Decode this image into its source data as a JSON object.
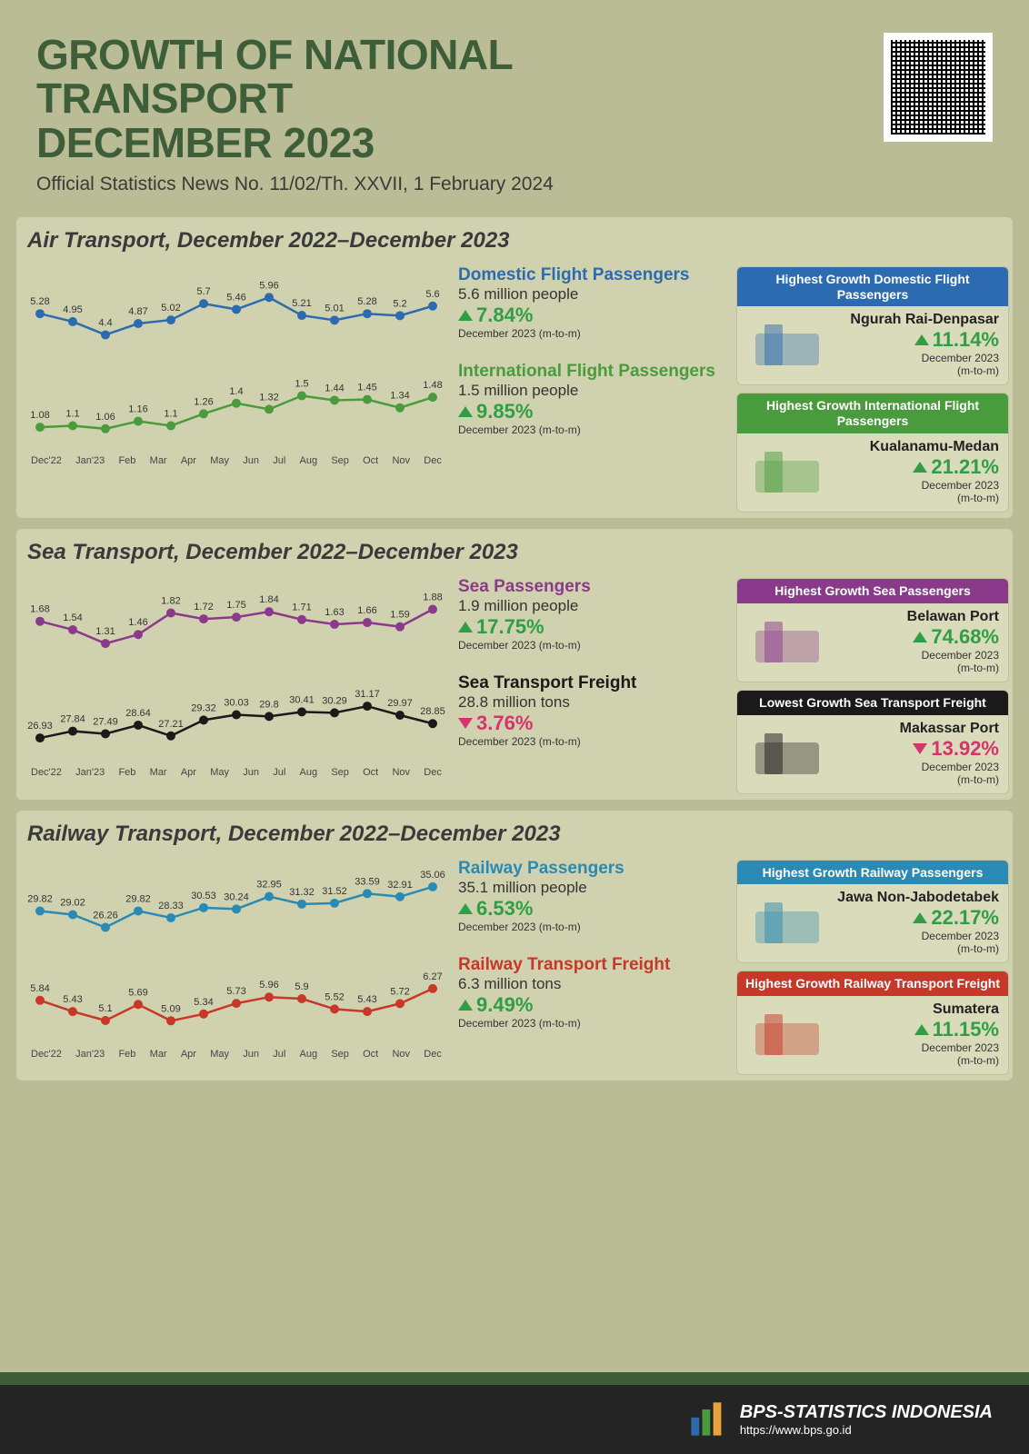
{
  "header": {
    "title_l1": "GROWTH OF NATIONAL",
    "title_l2": "TRANSPORT",
    "title_l3": "DECEMBER 2023",
    "subtitle": "Official Statistics News No. 11/02/Th. XXVII, 1 February 2024"
  },
  "x_labels": [
    "Dec'22",
    "Jan'23",
    "Feb",
    "Mar",
    "Apr",
    "May",
    "Jun",
    "Jul",
    "Aug",
    "Sep",
    "Oct",
    "Nov",
    "Dec"
  ],
  "colors": {
    "domestic": "#2d6bb0",
    "international": "#4a9b3e",
    "sea_pass": "#8b3a8b",
    "sea_freight": "#1a1a1a",
    "rail_pass": "#2b8ab3",
    "rail_freight": "#c73828",
    "up": "#2f9e44",
    "down": "#d6336c"
  },
  "sections": [
    {
      "title": "Air Transport, December 2022–December 2023",
      "series": [
        {
          "key": "domestic",
          "values": [
            5.28,
            4.95,
            4.4,
            4.87,
            5.02,
            5.7,
            5.46,
            5.96,
            5.21,
            5.01,
            5.28,
            5.2,
            5.6
          ],
          "color": "#2d6bb0",
          "yrange": [
            4.0,
            6.5
          ],
          "sum_title": "Domestic Flight Passengers",
          "sum_value": "5.6 million people",
          "sum_pct": "7.84%",
          "direction": "up",
          "pct_color": "#2f9e44",
          "sum_note": "December 2023 (m-to-m)"
        },
        {
          "key": "international",
          "values": [
            1.08,
            1.1,
            1.06,
            1.16,
            1.1,
            1.26,
            1.4,
            1.32,
            1.5,
            1.44,
            1.45,
            1.34,
            1.48
          ],
          "color": "#4a9b3e",
          "yrange": [
            0.9,
            1.7
          ],
          "sum_title": "International Flight Passengers",
          "sum_value": "1.5 million people",
          "sum_pct": "9.85%",
          "direction": "up",
          "pct_color": "#2f9e44",
          "sum_note": "December 2023 (m-to-m)"
        }
      ],
      "side": [
        {
          "hdr": "Highest Growth Domestic Flight Passengers",
          "hdr_bg": "#2d6bb0",
          "label": "Ngurah Rai-Denpasar",
          "pct": "11.14%",
          "direction": "up",
          "pct_color": "#2f9e44",
          "note": "December 2023",
          "note2": "(m-to-m)"
        },
        {
          "hdr": "Highest Growth International Flight Passengers",
          "hdr_bg": "#4a9b3e",
          "label": "Kualanamu-Medan",
          "pct": "21.21%",
          "direction": "up",
          "pct_color": "#2f9e44",
          "note": "December 2023",
          "note2": "(m-to-m)"
        }
      ]
    },
    {
      "title": "Sea Transport, December 2022–December 2023",
      "series": [
        {
          "key": "sea_pass",
          "values": [
            1.68,
            1.54,
            1.31,
            1.46,
            1.82,
            1.72,
            1.75,
            1.84,
            1.71,
            1.63,
            1.66,
            1.59,
            1.88
          ],
          "color": "#8b3a8b",
          "yrange": [
            1.1,
            2.1
          ],
          "sum_title": "Sea Passengers",
          "sum_value": "1.9 million people",
          "sum_pct": "17.75%",
          "direction": "up",
          "pct_color": "#2f9e44",
          "sum_note": "December 2023 (m-to-m)"
        },
        {
          "key": "sea_freight",
          "values": [
            26.93,
            27.84,
            27.49,
            28.64,
            27.21,
            29.32,
            30.03,
            29.8,
            30.41,
            30.29,
            31.17,
            29.97,
            28.85
          ],
          "color": "#1a1a1a",
          "yrange": [
            25,
            33
          ],
          "sum_title": "Sea Transport Freight",
          "sum_value": "28.8 million tons",
          "sum_pct": "3.76%",
          "direction": "down",
          "pct_color": "#d6336c",
          "sum_note": "December 2023 (m-to-m)"
        }
      ],
      "side": [
        {
          "hdr": "Highest Growth Sea Passengers",
          "hdr_bg": "#8b3a8b",
          "label": "Belawan Port",
          "pct": "74.68%",
          "direction": "up",
          "pct_color": "#2f9e44",
          "note": "December 2023",
          "note2": "(m-to-m)"
        },
        {
          "hdr": "Lowest Growth Sea Transport Freight",
          "hdr_bg": "#1a1a1a",
          "label": "Makassar Port",
          "pct": "13.92%",
          "direction": "down",
          "pct_color": "#d6336c",
          "note": "December 2023",
          "note2": "(m-to-m)"
        }
      ]
    },
    {
      "title": "Railway Transport, December 2022–December 2023",
      "series": [
        {
          "key": "rail_pass",
          "values": [
            29.82,
            29.02,
            26.26,
            29.82,
            28.33,
            30.53,
            30.24,
            32.95,
            31.32,
            31.52,
            33.59,
            32.91,
            35.06
          ],
          "color": "#2b8ab3",
          "yrange": [
            24,
            37
          ],
          "sum_title": "Railway Passengers",
          "sum_value": "35.1 million people",
          "sum_pct": "6.53%",
          "direction": "up",
          "pct_color": "#2f9e44",
          "sum_note": "December 2023 (m-to-m)"
        },
        {
          "key": "rail_freight",
          "values": [
            5.84,
            5.43,
            5.1,
            5.69,
            5.09,
            5.34,
            5.73,
            5.96,
            5.9,
            5.52,
            5.43,
            5.72,
            6.27
          ],
          "color": "#c73828",
          "yrange": [
            4.6,
            6.8
          ],
          "sum_title": "Railway Transport Freight",
          "sum_value": "6.3 million tons",
          "sum_pct": "9.49%",
          "direction": "up",
          "pct_color": "#2f9e44",
          "sum_note": "December 2023 (m-to-m)"
        }
      ],
      "side": [
        {
          "hdr": "Highest Growth Railway Passengers",
          "hdr_bg": "#2b8ab3",
          "label": "Jawa Non-Jabodetabek",
          "pct": "22.17%",
          "direction": "up",
          "pct_color": "#2f9e44",
          "note": "December 2023",
          "note2": "(m-to-m)"
        },
        {
          "hdr": "Highest Growth Railway Transport Freight",
          "hdr_bg": "#c73828",
          "label": "Sumatera",
          "pct": "11.15%",
          "direction": "up",
          "pct_color": "#2f9e44",
          "note": "December 2023",
          "note2": "(m-to-m)"
        }
      ]
    }
  ],
  "footer": {
    "org": "BPS-STATISTICS INDONESIA",
    "url": "https://www.bps.go.id"
  }
}
